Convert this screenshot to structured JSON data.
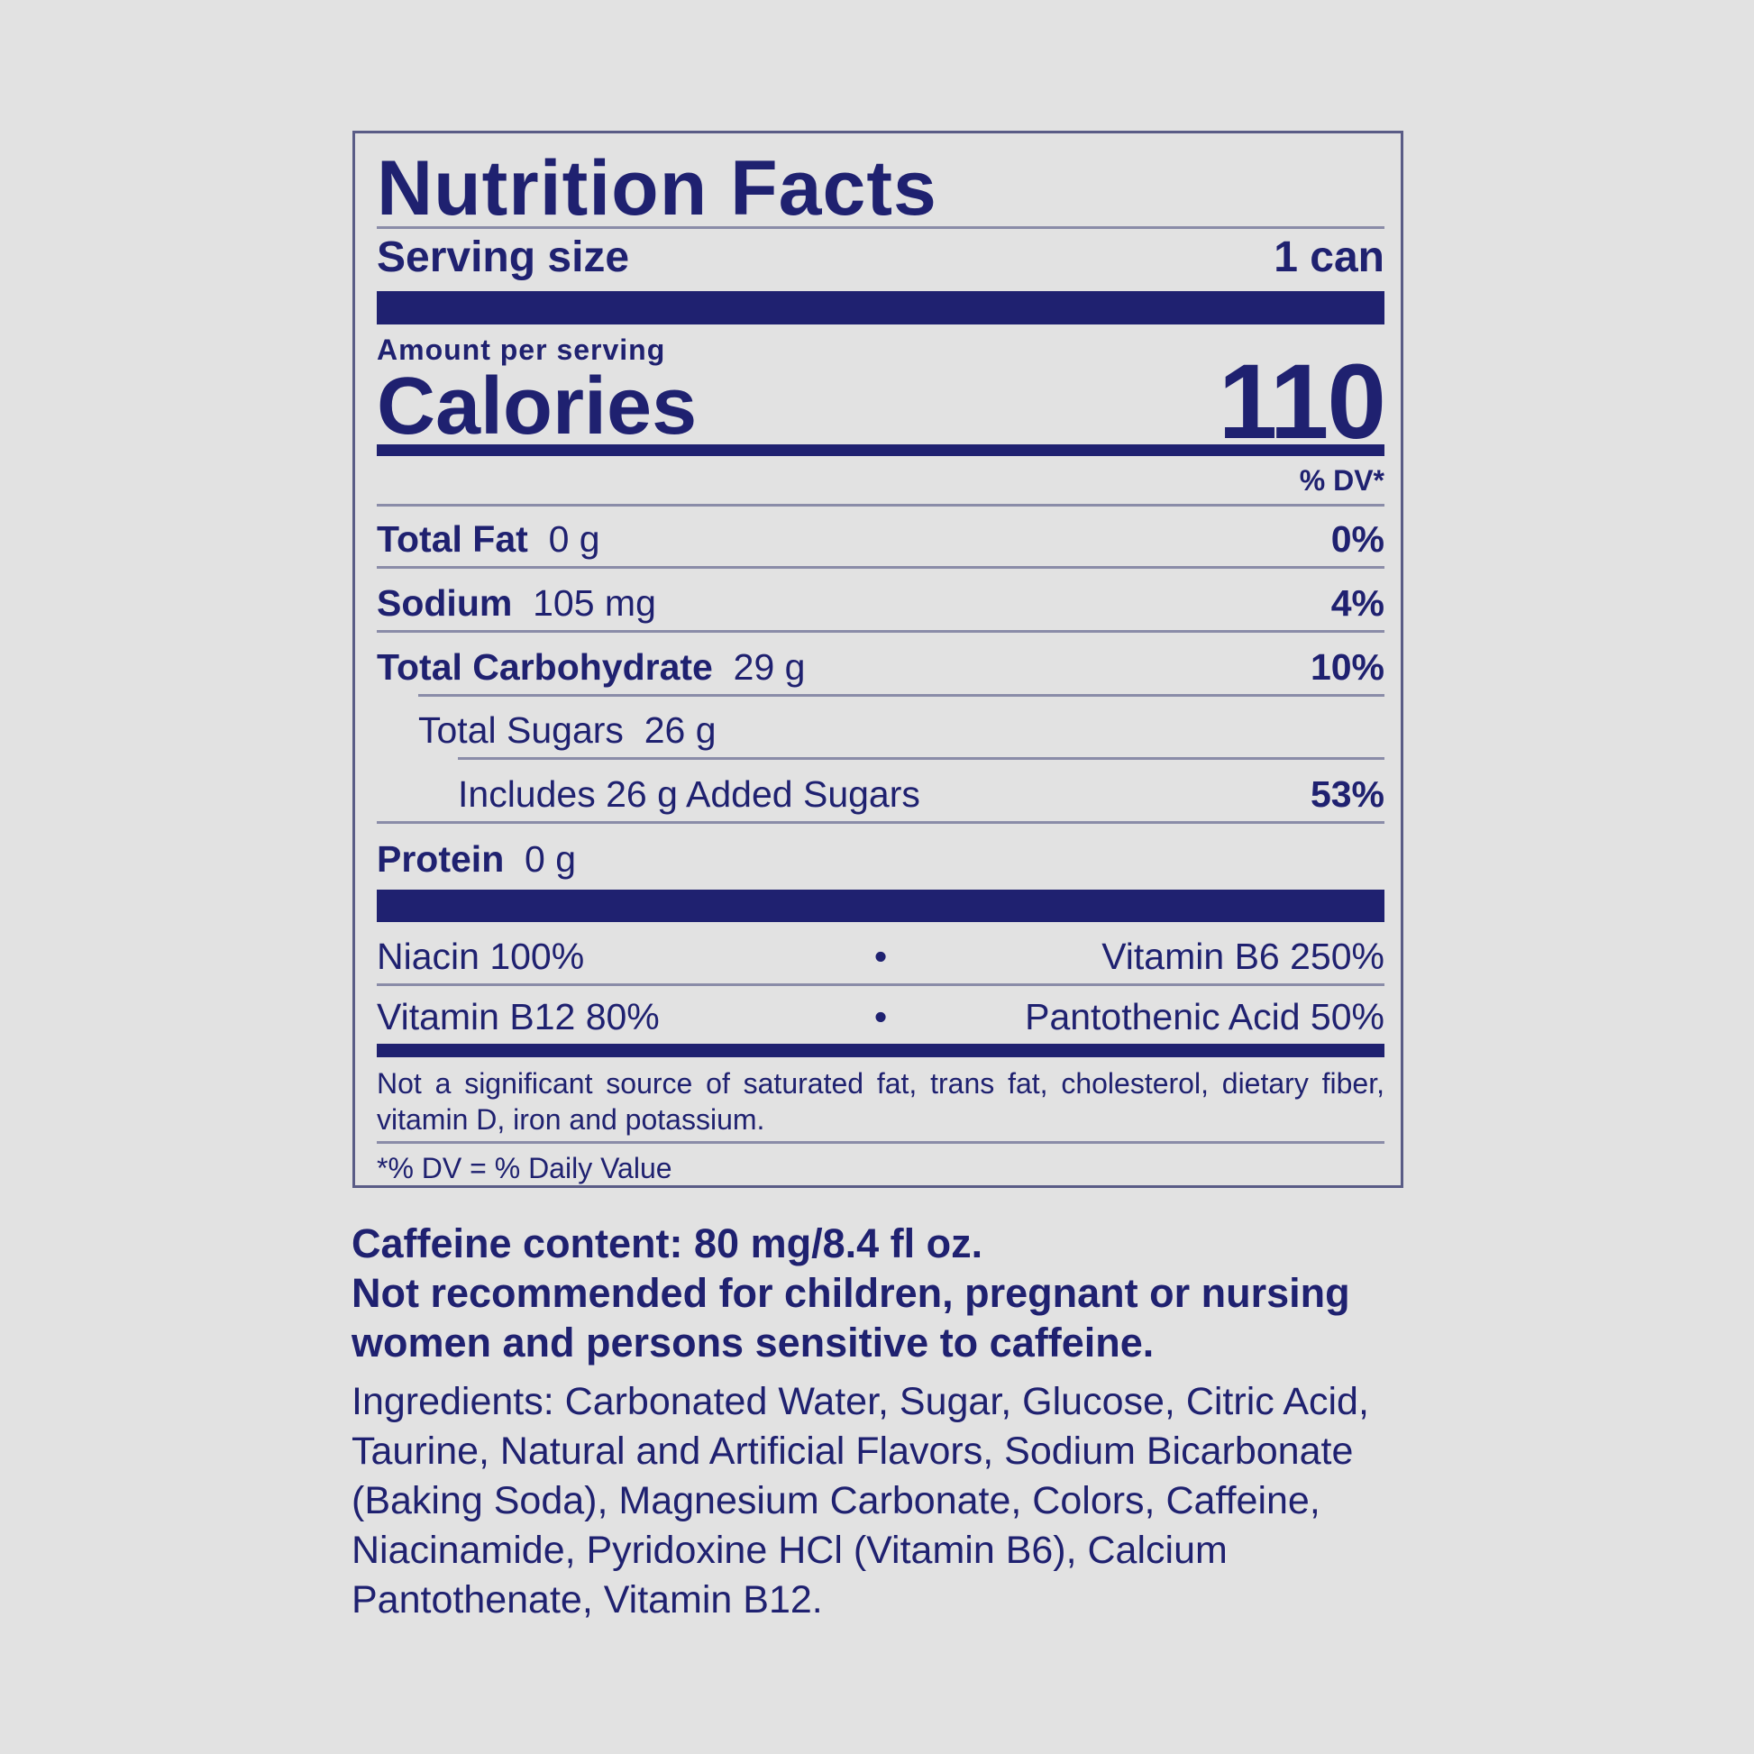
{
  "label": {
    "title": "Nutrition Facts",
    "serving_size_label": "Serving size",
    "serving_size_value": "1 can",
    "amount_per_serving": "Amount per serving",
    "calories_label": "Calories",
    "calories_value": "110",
    "dv_header": "% DV*",
    "nutrients": [
      {
        "name": "Total Fat",
        "amount": "0 g",
        "dv": "0%"
      },
      {
        "name": "Sodium",
        "amount": "105 mg",
        "dv": "4%"
      },
      {
        "name": "Total Carbohydrate",
        "amount": "29 g",
        "dv": "10%"
      },
      {
        "name": "Total Sugars",
        "amount": "26 g",
        "dv": ""
      },
      {
        "name": "Includes 26 g Added Sugars",
        "amount": "",
        "dv": "53%"
      },
      {
        "name": "Protein",
        "amount": "0 g",
        "dv": ""
      }
    ],
    "vitamins": [
      {
        "left": "Niacin 100%",
        "right": "Vitamin B6 250%"
      },
      {
        "left": "Vitamin B12 80%",
        "right": "Pantothenic Acid 50%"
      }
    ],
    "bullet": "•",
    "footnote": "Not a significant source of saturated fat, trans fat, cholesterol, dietary fiber, vitamin D, iron and potassium.",
    "dv_note": "*% DV = % Daily Value"
  },
  "caffeine": {
    "content": "Caffeine content: 80 mg/8.4 fl oz.",
    "warning": "Not recommended for children, pregnant or nursing women and persons sensitive to caffeine."
  },
  "ingredients": "Ingredients: Carbonated Water, Sugar, Glucose, Citric Acid, Taurine, Natural and Artificial Flavors, Sodium Bicarbonate (Baking Soda), Magnesium Carbonate, Colors, Caffeine, Niacinamide, Pyridoxine HCl (Vitamin B6), Calcium Pantothenate, Vitamin B12.",
  "colors": {
    "ink": "#1f2170",
    "background": "#e2e2e2"
  }
}
